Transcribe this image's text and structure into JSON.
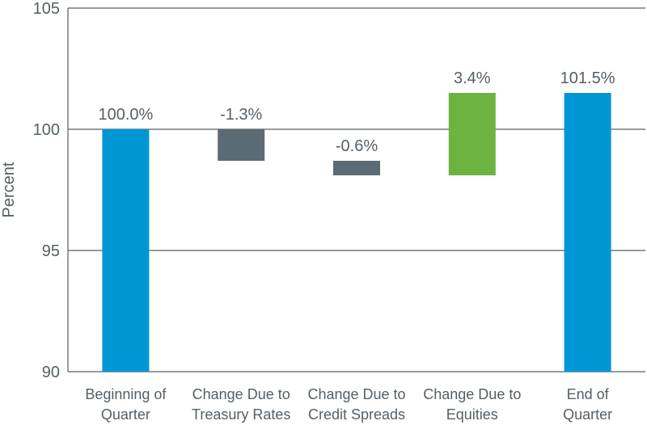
{
  "chart_data": {
    "type": "bar",
    "subtype": "waterfall",
    "title": "",
    "xlabel": "",
    "ylabel": "Percent",
    "ylim": [
      90,
      105
    ],
    "yticks": [
      90,
      95,
      100,
      105
    ],
    "grid": true,
    "categories": [
      [
        "Beginning of",
        "Quarter"
      ],
      [
        "Change Due to",
        "Treasury Rates"
      ],
      [
        "Change Due to",
        "Credit Spreads"
      ],
      [
        "Change Due to",
        "Equities"
      ],
      [
        "End of",
        "Quarter"
      ]
    ],
    "bars": [
      {
        "start": 90,
        "end": 100.0,
        "label": "100.0%",
        "color": "#0096d6"
      },
      {
        "start": 100.0,
        "end": 98.7,
        "label": "-1.3%",
        "color": "#5b6b75"
      },
      {
        "start": 98.7,
        "end": 98.1,
        "label": "-0.6%",
        "color": "#5b6b75"
      },
      {
        "start": 98.1,
        "end": 101.5,
        "label": "3.4%",
        "color": "#6db33f"
      },
      {
        "start": 90,
        "end": 101.5,
        "label": "101.5%",
        "color": "#0096d6"
      }
    ]
  }
}
